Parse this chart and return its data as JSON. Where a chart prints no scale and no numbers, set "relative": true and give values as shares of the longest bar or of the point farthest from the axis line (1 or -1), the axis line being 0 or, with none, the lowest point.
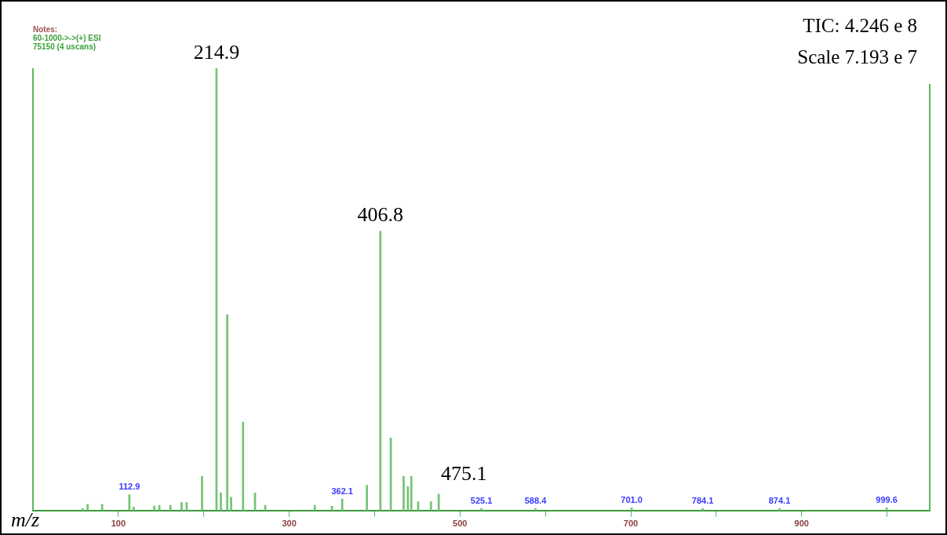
{
  "chart_data": {
    "type": "bar",
    "relative": true,
    "xlabel": "m/z",
    "color": "#74c274",
    "x": [
      58,
      64,
      81,
      112.9,
      118,
      142,
      148,
      161,
      174,
      180,
      198,
      214.9,
      220,
      227.5,
      232,
      246,
      260,
      272,
      330,
      350,
      362.1,
      391,
      406.8,
      419,
      434,
      439,
      443,
      451,
      466,
      475.1,
      525.1,
      588.4,
      701.0,
      784.1,
      874.1,
      999.6
    ],
    "values": [
      0.005,
      0.014,
      0.014,
      0.036,
      0.008,
      0.01,
      0.012,
      0.012,
      0.018,
      0.018,
      0.077,
      1,
      0.04,
      0.443,
      0.03,
      0.2,
      0.04,
      0.012,
      0.012,
      0.01,
      0.026,
      0.057,
      0.632,
      0.164,
      0.077,
      0.054,
      0.077,
      0.02,
      0.02,
      0.037,
      0.005,
      0.005,
      0.006,
      0.005,
      0.005,
      0.006
    ],
    "xlim": [
      0,
      1050
    ],
    "xticks": [
      100,
      {
        "value": 200,
        "label": null
      },
      300,
      {
        "value": 400,
        "label": null
      },
      500,
      {
        "value": 600,
        "label": null
      },
      700,
      {
        "value": 800,
        "label": null
      },
      900,
      {
        "value": 1000,
        "label": null
      }
    ],
    "annotations": [
      "Notes:",
      "60-1000->->(+) ESI",
      "75150 (4 uscans)",
      "TIC: 4.246 e 8",
      "Scale 7.193 e 7",
      {
        "text": "214.9",
        "x": 214.9,
        "y": 1
      },
      {
        "text": "406.8",
        "x": 406.8,
        "y": 0.632
      },
      {
        "text": "475.1",
        "x": 475.1,
        "y": 0.037
      },
      {
        "text": "112.9",
        "x": 112.9,
        "y": 0.036
      },
      {
        "text": "362.1",
        "x": 362.1,
        "y": 0.026
      },
      {
        "text": "525.1",
        "x": 525.1,
        "y": 0.005
      },
      {
        "text": "588.4",
        "x": 588.4,
        "y": 0.005
      },
      {
        "text": "701.0",
        "x": 701.0,
        "y": 0.006
      },
      {
        "text": "784.1",
        "x": 784.1,
        "y": 0.005
      },
      {
        "text": "874.1",
        "x": 874.1,
        "y": 0.005
      },
      {
        "text": "999.6",
        "x": 999.6,
        "y": 0.006
      }
    ]
  }
}
